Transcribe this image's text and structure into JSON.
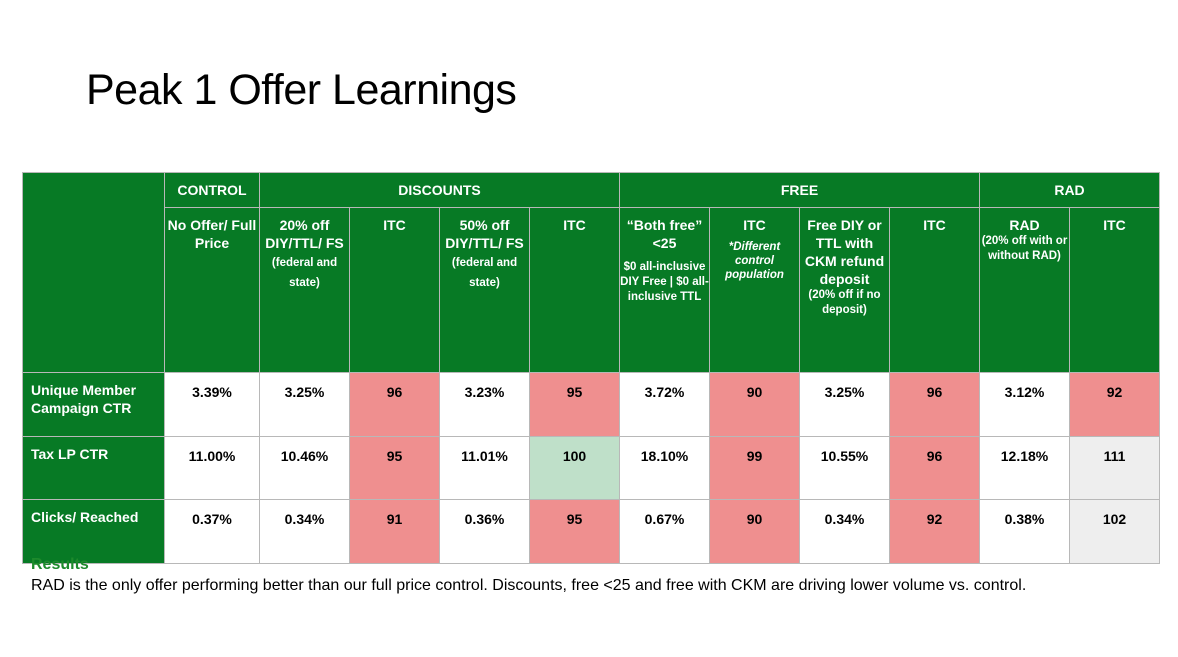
{
  "title": "Peak 1 Offer Learnings",
  "groups": {
    "control": "CONTROL",
    "discounts": "DISCOUNTS",
    "free": "FREE",
    "rad": "RAD"
  },
  "columns": {
    "c1": {
      "main": "No Offer/ Full Price"
    },
    "c2": {
      "main": "20% off DIY/TTL/ FS",
      "note": "(federal and state)"
    },
    "c3": {
      "main": "ITC"
    },
    "c4": {
      "main": "50% off DIY/TTL/ FS",
      "note": "(federal and state)"
    },
    "c5": {
      "main": "ITC"
    },
    "c6": {
      "main": "“Both free” <25",
      "note": "$0 all-inclusive DIY Free | $0 all-inclusive TTL"
    },
    "c7": {
      "main": "ITC",
      "note": "*Different control population"
    },
    "c8": {
      "main": "Free DIY or TTL with CKM refund deposit",
      "note": "(20% off if no deposit)"
    },
    "c9": {
      "main": "ITC"
    },
    "c10": {
      "main": "RAD",
      "note": "(20% off with or without RAD)"
    },
    "c11": {
      "main": "ITC"
    }
  },
  "rows": [
    {
      "label": "Unique Member Campaign CTR",
      "values": [
        "3.39%",
        "3.25%",
        "96",
        "3.23%",
        "95",
        "3.72%",
        "90",
        "3.25%",
        "96",
        "3.12%",
        "92"
      ]
    },
    {
      "label": "Tax LP CTR",
      "values": [
        "11.00%",
        "10.46%",
        "95",
        "11.01%",
        "100",
        "18.10%",
        "99",
        "10.55%",
        "96",
        "12.18%",
        "111"
      ]
    },
    {
      "label": "Clicks/ Reached",
      "values": [
        "0.37%",
        "0.34%",
        "91",
        "0.36%",
        "95",
        "0.67%",
        "90",
        "0.34%",
        "92",
        "0.38%",
        "102"
      ]
    }
  ],
  "colors": {
    "header_green": "#077a25",
    "below_index": "#ef8f8f",
    "at_index": "#bfe0c9",
    "above_index": "#eeeeee",
    "results_heading": "#1d8a2c"
  },
  "results": {
    "heading": "Results",
    "text": "RAD is the only offer performing better than our full price control. Discounts, free <25 and free with CKM are driving lower volume vs. control."
  }
}
